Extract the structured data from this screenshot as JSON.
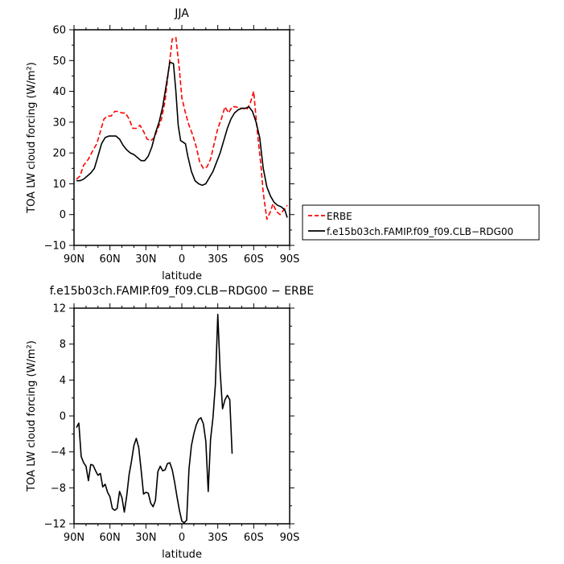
{
  "chart_data": [
    {
      "type": "line",
      "title": "JJA",
      "xlabel": "latitude",
      "ylabel": "TOA LW cloud forcing (W/m²)",
      "xlim": [
        90,
        -90
      ],
      "ylim": [
        -10,
        60
      ],
      "xticks": [
        90,
        60,
        30,
        0,
        -30,
        -60,
        -90
      ],
      "xticklabels": [
        "90N",
        "60N",
        "30N",
        "0",
        "30S",
        "60S",
        "90S"
      ],
      "yticks": [
        -10,
        0,
        10,
        20,
        30,
        40,
        50,
        60
      ],
      "yticklabels": [
        "−10",
        "0",
        "10",
        "20",
        "30",
        "40",
        "50",
        "60"
      ],
      "legend_position": "right",
      "series": [
        {
          "name": "ERBE",
          "color": "#ff0000",
          "dash": "dashed",
          "points": [
            [
              88,
              11.5
            ],
            [
              85,
              12.5
            ],
            [
              82,
              16
            ],
            [
              78,
              18
            ],
            [
              74,
              21
            ],
            [
              71,
              23
            ],
            [
              68,
              27
            ],
            [
              65,
              31
            ],
            [
              62,
              32
            ],
            [
              59,
              32
            ],
            [
              56,
              33.5
            ],
            [
              53,
              33.5
            ],
            [
              50,
              33
            ],
            [
              47,
              33
            ],
            [
              44,
              31
            ],
            [
              41,
              28
            ],
            [
              38,
              28
            ],
            [
              35,
              29
            ],
            [
              32,
              27
            ],
            [
              29,
              24.5
            ],
            [
              26,
              24
            ],
            [
              23,
              25
            ],
            [
              20,
              28
            ],
            [
              17,
              31
            ],
            [
              14,
              37
            ],
            [
              11,
              47
            ],
            [
              8,
              57
            ],
            [
              5,
              57.5
            ],
            [
              2,
              47
            ],
            [
              0,
              38
            ],
            [
              -3,
              33
            ],
            [
              -6,
              29
            ],
            [
              -9,
              26
            ],
            [
              -12,
              22
            ],
            [
              -15,
              17
            ],
            [
              -18,
              15
            ],
            [
              -21,
              15.5
            ],
            [
              -24,
              18
            ],
            [
              -27,
              23
            ],
            [
              -30,
              28
            ],
            [
              -33,
              31
            ],
            [
              -36,
              35
            ],
            [
              -39,
              33
            ],
            [
              -42,
              35
            ],
            [
              -45,
              35
            ],
            [
              -48,
              34.5
            ],
            [
              -51,
              34.5
            ],
            [
              -54,
              34
            ],
            [
              -57,
              36
            ],
            [
              -60,
              40
            ],
            [
              -63,
              27
            ],
            [
              -66,
              16
            ],
            [
              -68,
              7
            ],
            [
              -71,
              -1.5
            ],
            [
              -74,
              1
            ],
            [
              -76,
              3.5
            ],
            [
              -79,
              1
            ],
            [
              -82,
              0
            ],
            [
              -85,
              1.5
            ],
            [
              -88,
              3
            ]
          ]
        },
        {
          "name": "f.e15b03ch.FAMIP.f09_f09.CLB−RDG00",
          "color": "#000000",
          "dash": "solid",
          "points": [
            [
              88,
              11
            ],
            [
              85,
              11
            ],
            [
              82,
              11.5
            ],
            [
              79,
              12.5
            ],
            [
              76,
              13.5
            ],
            [
              73,
              15
            ],
            [
              70,
              19
            ],
            [
              67,
              23
            ],
            [
              64,
              25
            ],
            [
              61,
              25.5
            ],
            [
              58,
              25.5
            ],
            [
              55,
              25.5
            ],
            [
              52,
              24.5
            ],
            [
              49,
              22.5
            ],
            [
              46,
              21
            ],
            [
              43,
              20
            ],
            [
              40,
              19.5
            ],
            [
              37,
              18.5
            ],
            [
              34,
              17.5
            ],
            [
              31,
              17.5
            ],
            [
              28,
              19
            ],
            [
              25,
              22
            ],
            [
              22,
              26.5
            ],
            [
              19,
              30
            ],
            [
              16,
              35
            ],
            [
              13,
              42
            ],
            [
              10,
              49.5
            ],
            [
              7,
              49
            ],
            [
              5,
              40
            ],
            [
              3,
              29
            ],
            [
              1,
              24
            ],
            [
              -1,
              23.5
            ],
            [
              -3,
              23
            ],
            [
              -5,
              19
            ],
            [
              -8,
              14
            ],
            [
              -11,
              11
            ],
            [
              -14,
              10
            ],
            [
              -17,
              9.5
            ],
            [
              -20,
              10
            ],
            [
              -23,
              12
            ],
            [
              -26,
              14
            ],
            [
              -29,
              17
            ],
            [
              -32,
              20
            ],
            [
              -35,
              24
            ],
            [
              -38,
              28
            ],
            [
              -41,
              31
            ],
            [
              -44,
              33
            ],
            [
              -47,
              34
            ],
            [
              -50,
              34.5
            ],
            [
              -53,
              34.5
            ],
            [
              -56,
              35
            ],
            [
              -59,
              33.5
            ],
            [
              -62,
              30
            ],
            [
              -65,
              25
            ],
            [
              -68,
              15
            ],
            [
              -71,
              9
            ],
            [
              -74,
              6
            ],
            [
              -77,
              4
            ],
            [
              -80,
              3
            ],
            [
              -83,
              2.5
            ],
            [
              -86,
              1.5
            ],
            [
              -88,
              -1
            ]
          ]
        }
      ]
    },
    {
      "type": "line",
      "title": "f.e15b03ch.FAMIP.f09_f09.CLB−RDG00 − ERBE",
      "xlabel": "latitude",
      "ylabel": "TOA LW cloud forcing (W/m²)",
      "xlim": [
        90,
        -90
      ],
      "ylim": [
        -12,
        12
      ],
      "xticks": [
        90,
        60,
        30,
        0,
        -30,
        -60,
        -90
      ],
      "xticklabels": [
        "90N",
        "60N",
        "30N",
        "0",
        "30S",
        "60S",
        "90S"
      ],
      "yticks": [
        -12,
        -8,
        -4,
        0,
        4,
        8,
        12
      ],
      "yticklabels": [
        "−12",
        "−8",
        "−4",
        "0",
        "4",
        "8",
        "12"
      ],
      "series": [
        {
          "name": "",
          "color": "#000000",
          "dash": "solid",
          "points": [
            [
              88,
              -1.3
            ],
            [
              86,
              -0.8
            ],
            [
              84,
              -4.5
            ],
            [
              82,
              -5.2
            ],
            [
              80,
              -5.6
            ],
            [
              78,
              -7.2
            ],
            [
              76,
              -5.4
            ],
            [
              74,
              -5.5
            ],
            [
              72,
              -6.1
            ],
            [
              70,
              -6.6
            ],
            [
              68,
              -6.4
            ],
            [
              66,
              -7.9
            ],
            [
              64,
              -7.6
            ],
            [
              62,
              -8.5
            ],
            [
              60,
              -9.0
            ],
            [
              58,
              -10.3
            ],
            [
              56,
              -10.5
            ],
            [
              54,
              -10.3
            ],
            [
              52,
              -8.4
            ],
            [
              50,
              -9.1
            ],
            [
              48,
              -10.7
            ],
            [
              46,
              -8.9
            ],
            [
              44,
              -6.5
            ],
            [
              42,
              -5.0
            ],
            [
              40,
              -3.3
            ],
            [
              38,
              -2.5
            ],
            [
              36,
              -3.5
            ],
            [
              34,
              -6.0
            ],
            [
              32,
              -8.7
            ],
            [
              30,
              -8.5
            ],
            [
              28,
              -8.6
            ],
            [
              26,
              -9.7
            ],
            [
              24,
              -10.1
            ],
            [
              22,
              -9.4
            ],
            [
              20,
              -6.2
            ],
            [
              18,
              -5.6
            ],
            [
              16,
              -6.1
            ],
            [
              14,
              -6.0
            ],
            [
              12,
              -5.3
            ],
            [
              10,
              -5.2
            ],
            [
              8,
              -6.0
            ],
            [
              6,
              -7.4
            ],
            [
              4,
              -9.0
            ],
            [
              2,
              -10.5
            ],
            [
              0,
              -11.7
            ],
            [
              -2,
              -11.9
            ],
            [
              -4,
              -11.6
            ],
            [
              -6,
              -5.9
            ],
            [
              -8,
              -3.3
            ],
            [
              -10,
              -2.0
            ],
            [
              -12,
              -1.0
            ],
            [
              -14,
              -0.4
            ],
            [
              -16,
              -0.2
            ],
            [
              -18,
              -0.9
            ],
            [
              -20,
              -2.8
            ],
            [
              -22,
              -8.4
            ],
            [
              -24,
              -2.6
            ],
            [
              -26,
              -0.2
            ],
            [
              -28,
              3.5
            ],
            [
              -30,
              11.3
            ],
            [
              -32,
              5.0
            ],
            [
              -34,
              0.8
            ],
            [
              -36,
              1.8
            ],
            [
              -38,
              2.3
            ],
            [
              -40,
              1.8
            ],
            [
              -42,
              -4.2
            ]
          ]
        }
      ]
    }
  ]
}
